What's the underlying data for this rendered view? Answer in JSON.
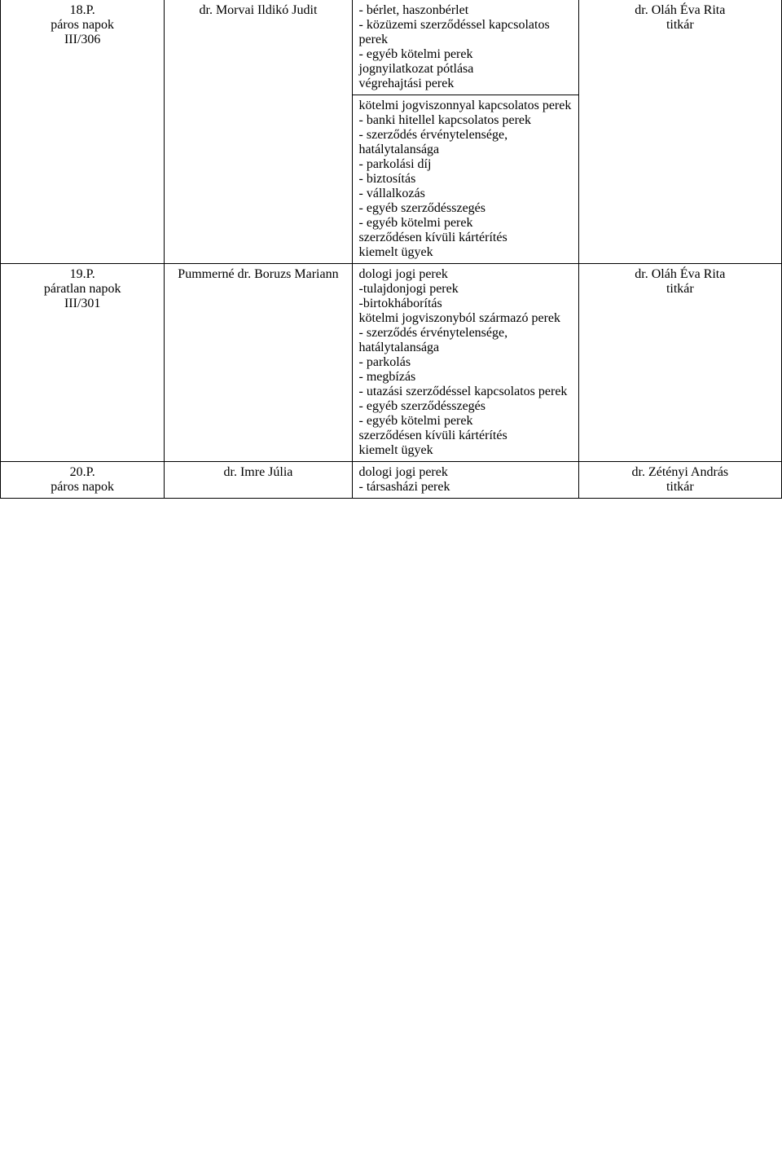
{
  "table": {
    "rows": [
      {
        "col1": "18.P.\npáros napok\nIII/306",
        "col2": "dr. Morvai Ildikó Judit",
        "col3": "- bérlet, haszonbérlet\n- közüzemi szerződéssel kapcsolatos perek\n- egyéb kötelmi perek\njognyilatkozat pótlása\nvégrehajtási perek\nkötelmi jogviszonnyal kapcsolatos perek\n- banki hitellel kapcsolatos perek\n- szerződés érvénytelensége, hatálytalansága\n- parkolási díj\n- biztosítás\n- vállalkozás\n- egyéb szerződésszegés\n- egyéb kötelmi perek\nszerződésen kívüli kártérítés\nkiemelt ügyek",
        "col4": "dr. Oláh Éva Rita\ntitkár",
        "col3_top": "- bérlet, haszonbérlet\n- közüzemi szerződéssel kapcsolatos perek\n- egyéb kötelmi perek\njognyilatkozat pótlása\nvégrehajtási perek",
        "col3_bottom": "kötelmi jogviszonnyal kapcsolatos perek\n- banki hitellel kapcsolatos perek\n- szerződés érvénytelensége, hatálytalansága\n- parkolási díj\n- biztosítás\n- vállalkozás\n- egyéb szerződésszegés\n- egyéb kötelmi perek\nszerződésen kívüli kártérítés\nkiemelt ügyek"
      },
      {
        "col1": "19.P.\npáratlan napok\nIII/301",
        "col2": "Pummerné dr. Boruzs Mariann",
        "col3": "dologi jogi perek\n-tulajdonjogi perek\n-birtokháborítás\nkötelmi jogviszonyból származó perek\n- szerződés érvénytelensége, hatálytalansága\n- parkolás\n- megbízás\n- utazási szerződéssel kapcsolatos perek\n- egyéb szerződésszegés\n- egyéb kötelmi perek\nszerződésen kívüli kártérítés\nkiemelt ügyek",
        "col4": "dr. Oláh Éva Rita\ntitkár"
      },
      {
        "col1": "20.P.\npáros napok",
        "col2": "dr. Imre Júlia",
        "col3": "dologi jogi perek\n- társasházi perek",
        "col4": "dr. Zétényi András\ntitkár"
      }
    ]
  }
}
